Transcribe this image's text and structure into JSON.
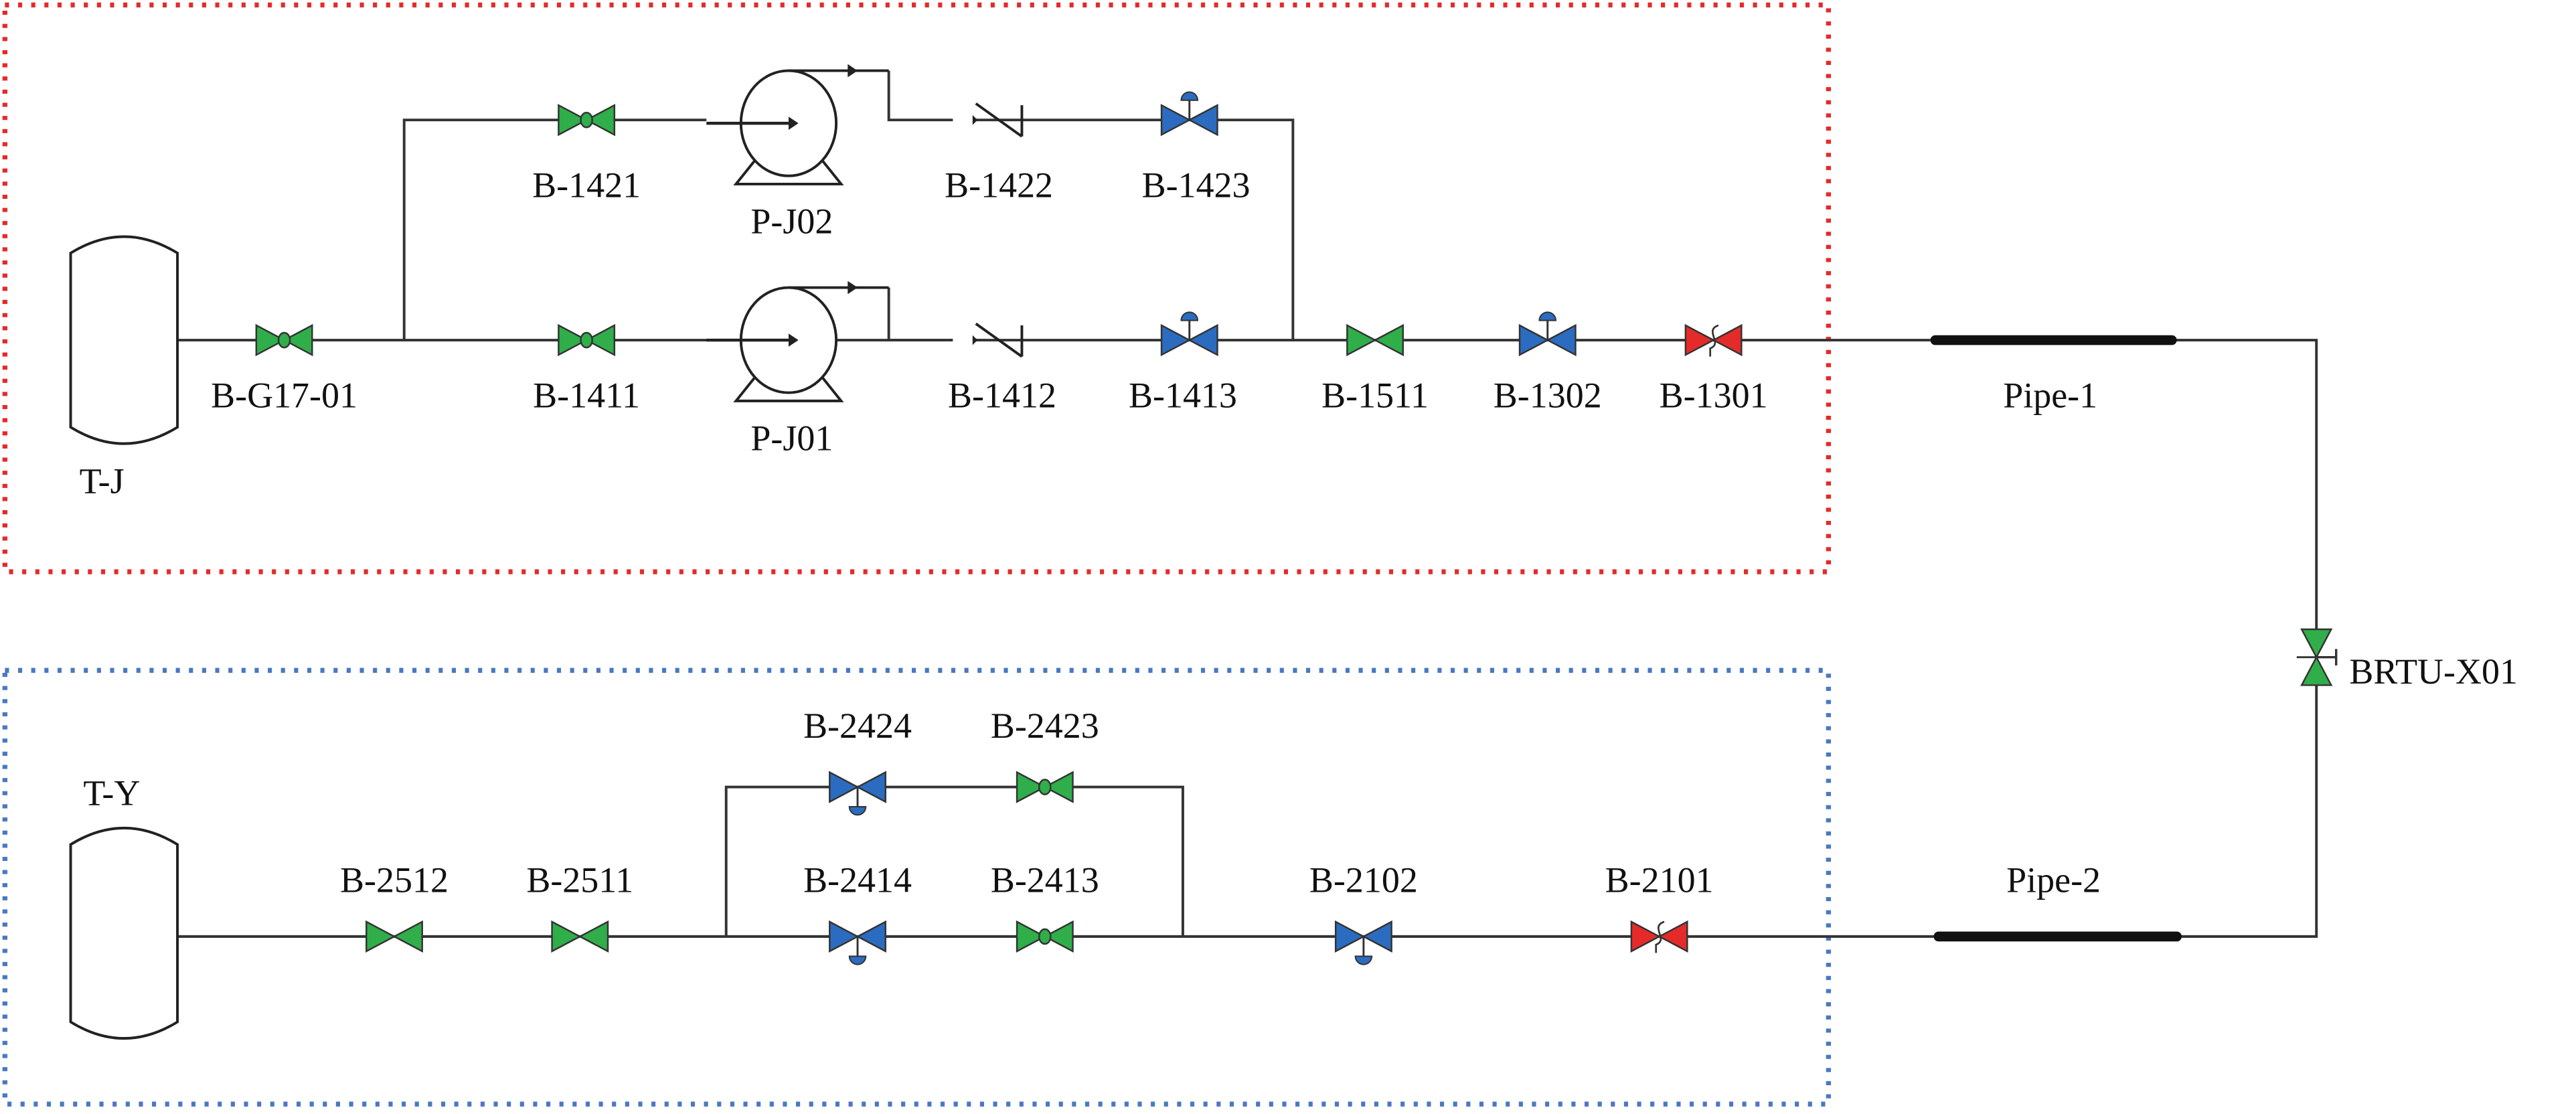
{
  "colors": {
    "manual_valve": "#2fae4a",
    "control_valve": "#2b6cc0",
    "relief_valve": "#e52a2a",
    "pipe": "#333333",
    "upper_zone_border": "#e52a2a",
    "lower_zone_border": "#4a78c2"
  },
  "upper_zone": {
    "tank": "T-J",
    "pumps": [
      "P-J02",
      "P-J01"
    ],
    "valves": [
      {
        "label": "B-G17-01",
        "type": "manual"
      },
      {
        "label": "B-1421",
        "type": "manual"
      },
      {
        "label": "B-1422",
        "type": "check"
      },
      {
        "label": "B-1423",
        "type": "control"
      },
      {
        "label": "B-1411",
        "type": "manual"
      },
      {
        "label": "B-1412",
        "type": "check"
      },
      {
        "label": "B-1413",
        "type": "control"
      },
      {
        "label": "B-1511",
        "type": "gate"
      },
      {
        "label": "B-1302",
        "type": "control"
      },
      {
        "label": "B-1301",
        "type": "relief"
      }
    ]
  },
  "lower_zone": {
    "tank": "T-Y",
    "valves": [
      {
        "label": "B-2512",
        "type": "gate"
      },
      {
        "label": "B-2511",
        "type": "gate"
      },
      {
        "label": "B-2424",
        "type": "control-inverted"
      },
      {
        "label": "B-2423",
        "type": "manual"
      },
      {
        "label": "B-2414",
        "type": "control-inverted"
      },
      {
        "label": "B-2413",
        "type": "manual"
      },
      {
        "label": "B-2102",
        "type": "control-inverted"
      },
      {
        "label": "B-2101",
        "type": "relief"
      }
    ]
  },
  "pipes": [
    "Pipe-1",
    "Pipe-2"
  ],
  "connector_valve": {
    "label": "BRTU-X01",
    "type": "gate"
  }
}
